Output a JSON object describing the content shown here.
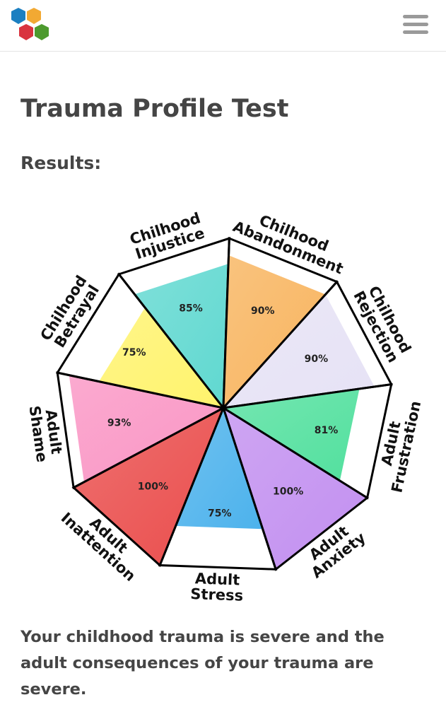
{
  "header": {
    "logo_icon": "hexagon-cluster-logo",
    "menu_icon": "hamburger-menu-icon"
  },
  "page": {
    "title": "Trauma Profile Test",
    "results_label": "Results:",
    "summary": "Your childhood trauma is severe and the adult consequences of your trauma are severe."
  },
  "chart_data": {
    "type": "polar-area",
    "categories": [
      {
        "line1": "Chilhood",
        "line2": "Injustice",
        "value": 85,
        "label": "85%",
        "color": "#5fd8d0"
      },
      {
        "line1": "Chilhood",
        "line2": "Abandonment",
        "value": 90,
        "label": "90%",
        "color": "#f8b45e"
      },
      {
        "line1": "Chilhood",
        "line2": "Rejection",
        "value": 90,
        "label": "90%",
        "color": "#e6e2f5"
      },
      {
        "line1": "Adult",
        "line2": "Frustration",
        "value": 81,
        "label": "81%",
        "color": "#52e09e"
      },
      {
        "line1": "Adult",
        "line2": "Anxiety",
        "value": 100,
        "label": "100%",
        "color": "#c28ff0"
      },
      {
        "line1": "Adult",
        "line2": "Stress",
        "value": 75,
        "label": "75%",
        "color": "#4cb2ec"
      },
      {
        "line1": "Adult",
        "line2": "Inattention",
        "value": 100,
        "label": "100%",
        "color": "#ea4d4c"
      },
      {
        "line1": "Adult",
        "line2": "Shame",
        "value": 93,
        "label": "93%",
        "color": "#fa95c4"
      },
      {
        "line1": "Chilhood",
        "line2": "Betrayal",
        "value": 75,
        "label": "75%",
        "color": "#fff36c"
      }
    ],
    "max": 100
  }
}
